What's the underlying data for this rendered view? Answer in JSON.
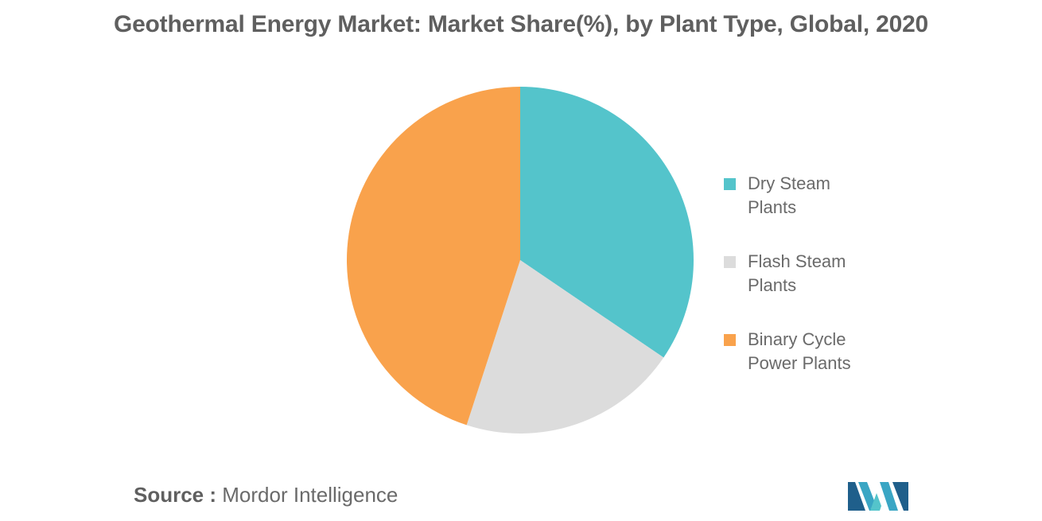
{
  "title": "Geothermal Energy Market: Market Share(%), by Plant Type, Global, 2020",
  "chart_data": {
    "type": "pie",
    "title": "Geothermal Energy Market: Market Share(%), by Plant Type, Global, 2020",
    "categories": [
      "Dry Steam Plants",
      "Flash Steam Plants",
      "Binary Cycle Power Plants"
    ],
    "values": [
      34.5,
      20.5,
      45.0
    ],
    "colors": [
      "#54c4cb",
      "#dcdcdc",
      "#f9a24c"
    ],
    "legend": "right",
    "start": "top",
    "direction": "clockwise"
  },
  "source": {
    "label": "Source :",
    "name": "Mordor Intelligence"
  },
  "logo": {
    "icon": "mordor-intelligence-logo-icon"
  }
}
